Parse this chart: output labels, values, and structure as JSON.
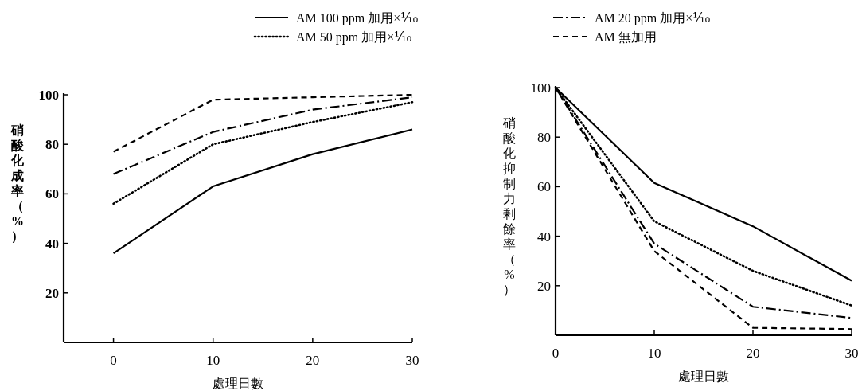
{
  "chart_data": [
    {
      "type": "line",
      "xlabel": "處理日數",
      "ylabel": "硝酸化成率（%）",
      "x": [
        0,
        10,
        20,
        30
      ],
      "xlim": [
        -5,
        30
      ],
      "xticks": [
        0,
        10,
        20,
        30
      ],
      "ylim": [
        0,
        100
      ],
      "yticks": [
        20,
        40,
        60,
        80,
        100
      ],
      "grid": false,
      "legend": "top",
      "marker": "none",
      "series": [
        {
          "name": "AM 100 ppm 加用×⅒",
          "color": "#000000",
          "line_style": "solid",
          "values": [
            36,
            63,
            76,
            86
          ]
        },
        {
          "name": "AM 50 ppm 加用×⅒",
          "color": "#000000",
          "line_style": "dotted",
          "values": [
            56,
            80,
            89,
            97
          ]
        },
        {
          "name": "AM 20 ppm 加用×⅒",
          "color": "#000000",
          "line_style": "dashdot",
          "values": [
            68,
            85,
            94,
            99
          ]
        },
        {
          "name": "AM 無加用",
          "color": "#000000",
          "line_style": "dashed",
          "values": [
            77,
            98,
            99,
            100
          ]
        }
      ]
    },
    {
      "type": "line",
      "xlabel": "處理日數",
      "ylabel": "硝酸化抑制力剰餘率（%）",
      "x": [
        0,
        10,
        20,
        30
      ],
      "xlim": [
        0,
        30
      ],
      "xticks": [
        0,
        10,
        20,
        30
      ],
      "ylim": [
        0,
        100
      ],
      "yticks": [
        20,
        40,
        60,
        80,
        100
      ],
      "grid": false,
      "legend": false,
      "marker": "none",
      "series": [
        {
          "color": "#000000",
          "line_style": "solid",
          "values": [
            100,
            61.5,
            44,
            22
          ]
        },
        {
          "color": "#000000",
          "line_style": "dotted",
          "values": [
            100,
            46,
            26,
            12
          ]
        },
        {
          "color": "#000000",
          "line_style": "dashdot",
          "values": [
            100,
            37,
            11.5,
            7
          ]
        },
        {
          "color": "#000000",
          "line_style": "dashed",
          "values": [
            100,
            34,
            3,
            2.5
          ]
        }
      ]
    }
  ]
}
